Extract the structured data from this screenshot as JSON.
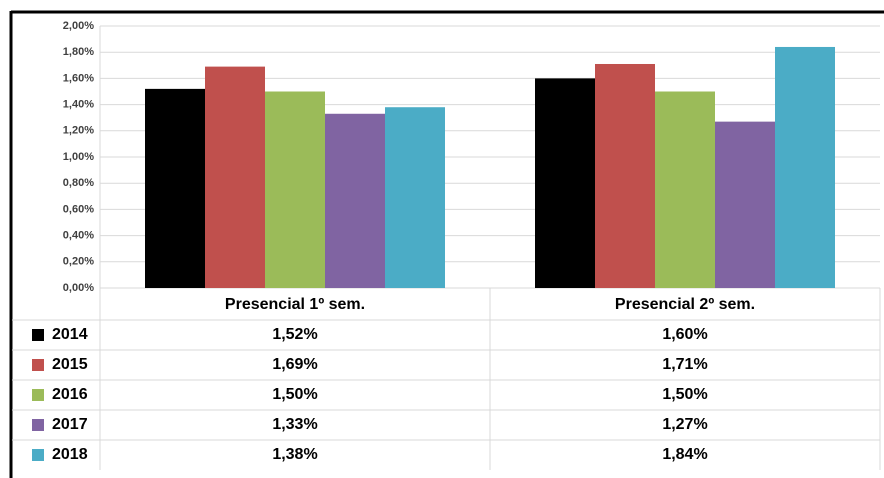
{
  "chart_data": {
    "type": "bar",
    "categories": [
      "Presencial 1º sem.",
      "Presencial 2º sem."
    ],
    "series": [
      {
        "name": "2014",
        "color": "#000000",
        "values": [
          1.52,
          1.6
        ],
        "value_labels": [
          "1,52%",
          "1,60%"
        ]
      },
      {
        "name": "2015",
        "color": "#c0504d",
        "values": [
          1.69,
          1.71
        ],
        "value_labels": [
          "1,69%",
          "1,71%"
        ]
      },
      {
        "name": "2016",
        "color": "#9bbb59",
        "values": [
          1.5,
          1.5
        ],
        "value_labels": [
          "1,50%",
          "1,50%"
        ]
      },
      {
        "name": "2017",
        "color": "#8064a2",
        "values": [
          1.33,
          1.27
        ],
        "value_labels": [
          "1,33%",
          "1,27%"
        ]
      },
      {
        "name": "2018",
        "color": "#4bacc6",
        "values": [
          1.38,
          1.84
        ],
        "value_labels": [
          "1,38%",
          "1,84%"
        ]
      }
    ],
    "ylim": [
      0,
      2
    ],
    "yticks": [
      {
        "value": 0,
        "label": "0,00%"
      },
      {
        "value": 0.2,
        "label": "0,20%"
      },
      {
        "value": 0.4,
        "label": "0,40%"
      },
      {
        "value": 0.6,
        "label": "0,60%"
      },
      {
        "value": 0.8,
        "label": "0,80%"
      },
      {
        "value": 1.0,
        "label": "1,00%"
      },
      {
        "value": 1.2,
        "label": "1,20%"
      },
      {
        "value": 1.4,
        "label": "1,40%"
      },
      {
        "value": 1.6,
        "label": "1,60%"
      },
      {
        "value": 1.8,
        "label": "1,80%"
      },
      {
        "value": 2.0,
        "label": "2,00%"
      }
    ],
    "grid": true
  }
}
